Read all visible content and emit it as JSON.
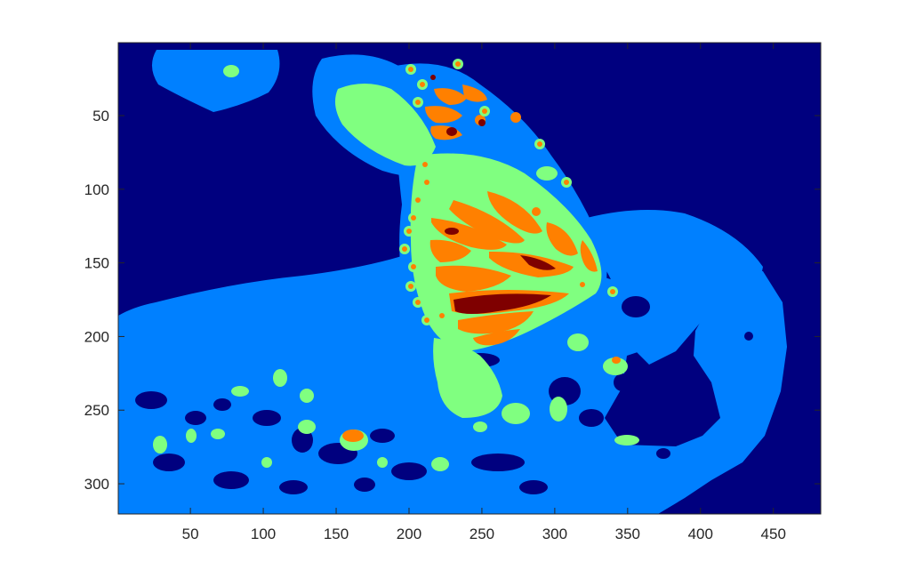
{
  "chart_data": {
    "type": "heatmap",
    "title": "",
    "xlabel": "",
    "ylabel": "",
    "xlim": [
      0.5,
      482.5
    ],
    "ylim": [
      320.5,
      0.5
    ],
    "y_direction": "reverse",
    "grid": false,
    "legend": "none",
    "colormap": "jet",
    "level_colors": {
      "background": "#00007f",
      "level1": "#0080ff",
      "level2": "#80ff80",
      "level3": "#ff8000",
      "level4": "#7f0000"
    },
    "xticks": [
      50,
      100,
      150,
      200,
      250,
      300,
      350,
      400,
      450
    ],
    "yticks": [
      50,
      100,
      150,
      200,
      250,
      300
    ],
    "xtick_labels": [
      "50",
      "100",
      "150",
      "200",
      "250",
      "300",
      "350",
      "400",
      "450"
    ],
    "ytick_labels": [
      "50",
      "100",
      "150",
      "200",
      "250",
      "300"
    ],
    "content": "quantized intensity image of a butterfly on a leaf"
  }
}
